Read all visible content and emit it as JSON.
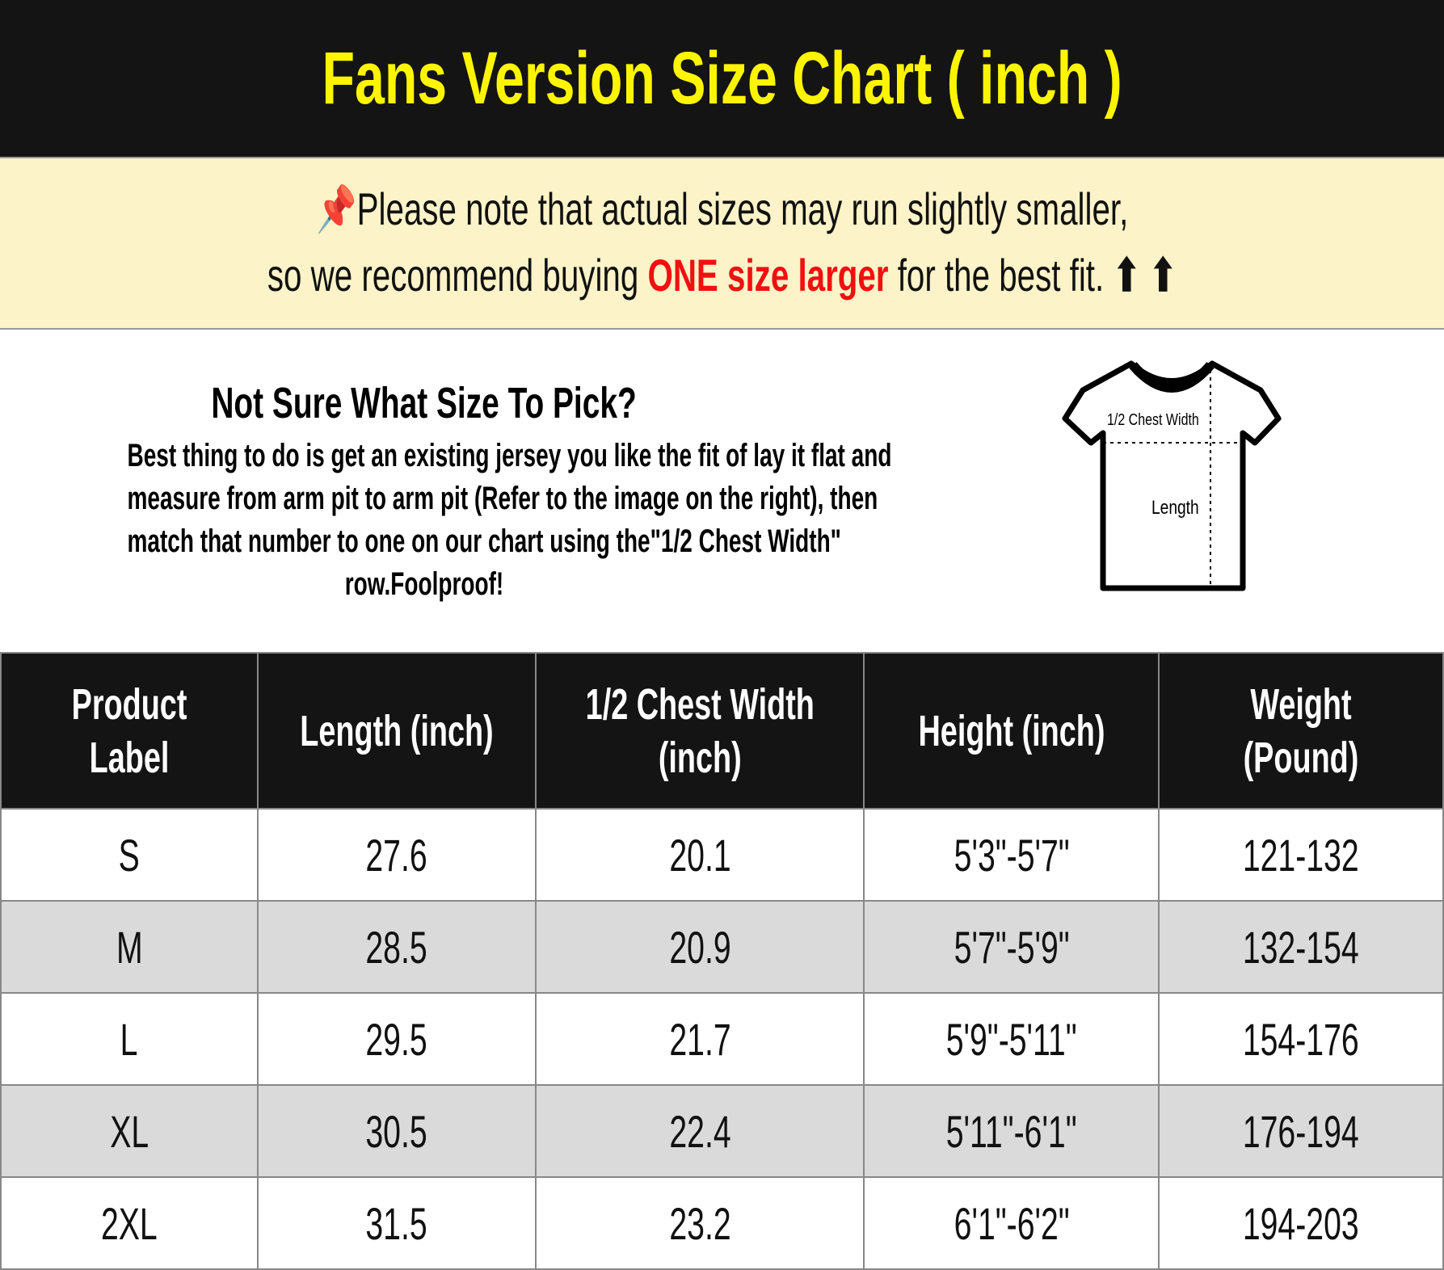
{
  "title": "Fans Version Size Chart ( inch )",
  "note": {
    "icon": "pushpin-icon",
    "line1": "Please note that actual sizes may run slightly smaller,",
    "line2_pre": "so we recommend buying ",
    "line2_highlight": "ONE size larger",
    "line2_post": " for the best fit. ",
    "arrows": "⬆ ⬆",
    "highlight_color": "#f01010"
  },
  "info": {
    "heading": "Not Sure What Size To Pick?",
    "lines": [
      "Best thing to do is get an existing jersey you like the fit of lay it flat and",
      "measure from arm pit to arm pit (Refer to the image on the right), then",
      "match that number to one on our chart using the\"1/2 Chest Width\"",
      "row.Foolproof!"
    ],
    "shirt_labels": {
      "chest": "1/2 Chest Width",
      "length": "Length"
    }
  },
  "table": {
    "headers": [
      [
        "Product",
        "Label"
      ],
      [
        "Length (inch)"
      ],
      [
        "1/2 Chest Width",
        "(inch)"
      ],
      [
        "Height (inch)"
      ],
      [
        "Weight",
        "(Pound)"
      ]
    ],
    "rows": [
      [
        "S",
        "27.6",
        "20.1",
        "5'3\"-5'7\"",
        "121-132"
      ],
      [
        "M",
        "28.5",
        "20.9",
        "5'7\"-5'9\"",
        "132-154"
      ],
      [
        "L",
        "29.5",
        "21.7",
        "5'9\"-5'11\"",
        "154-176"
      ],
      [
        "XL",
        "30.5",
        "22.4",
        "5'11\"-6'1\"",
        "176-194"
      ],
      [
        "2XL",
        "31.5",
        "23.2",
        "6'1\"-6'2\"",
        "194-203"
      ]
    ]
  },
  "colors": {
    "title_bg": "#141414",
    "title_text": "#fdf500",
    "note_bg": "#fdf3c8",
    "alt_row": "#dadada"
  }
}
